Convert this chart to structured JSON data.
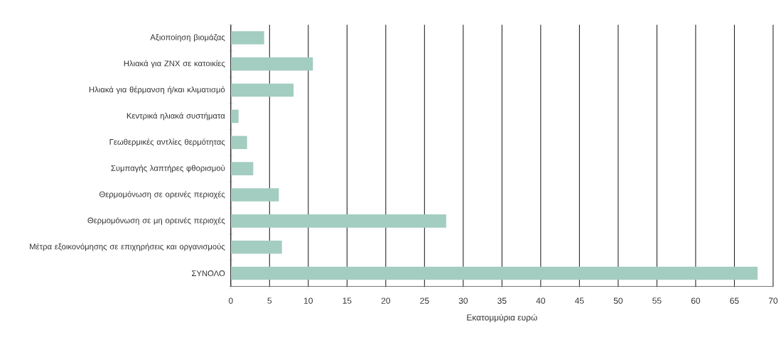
{
  "chart_data": {
    "type": "bar",
    "orientation": "horizontal",
    "xlabel": "Εκατομμύρια ευρώ",
    "categories": [
      "Αξιοποίηση βιομάζας",
      "Ηλιακά για ZNX σε κατοικίες",
      "Ηλιακά για θέρμανση ή/και κλιματισμό",
      "Κεντρικά ηλιακά συστήματα",
      "Γεωθερμικές αντλίες θερμότητας",
      "Συμπαγής λαπτήρες φθορισμού",
      "Θερμομόνωση σε ορεινές περιοχές",
      "Θερμομόνωση σε μη ορεινές περιοχές",
      "Μέτρα εξοικονόμησης σε επιχηρήσεις και οργανισμούς",
      "ΣΥΝΟΛΟ"
    ],
    "values": [
      4.3,
      10.6,
      8.1,
      1.0,
      2.1,
      2.9,
      6.2,
      27.8,
      6.6,
      68
    ],
    "color": "#a3cdc1",
    "xlim": [
      0,
      70
    ],
    "xticks": [
      0,
      5,
      10,
      15,
      20,
      25,
      30,
      35,
      40,
      45,
      50,
      55,
      60,
      65,
      70
    ],
    "grid": "x"
  }
}
